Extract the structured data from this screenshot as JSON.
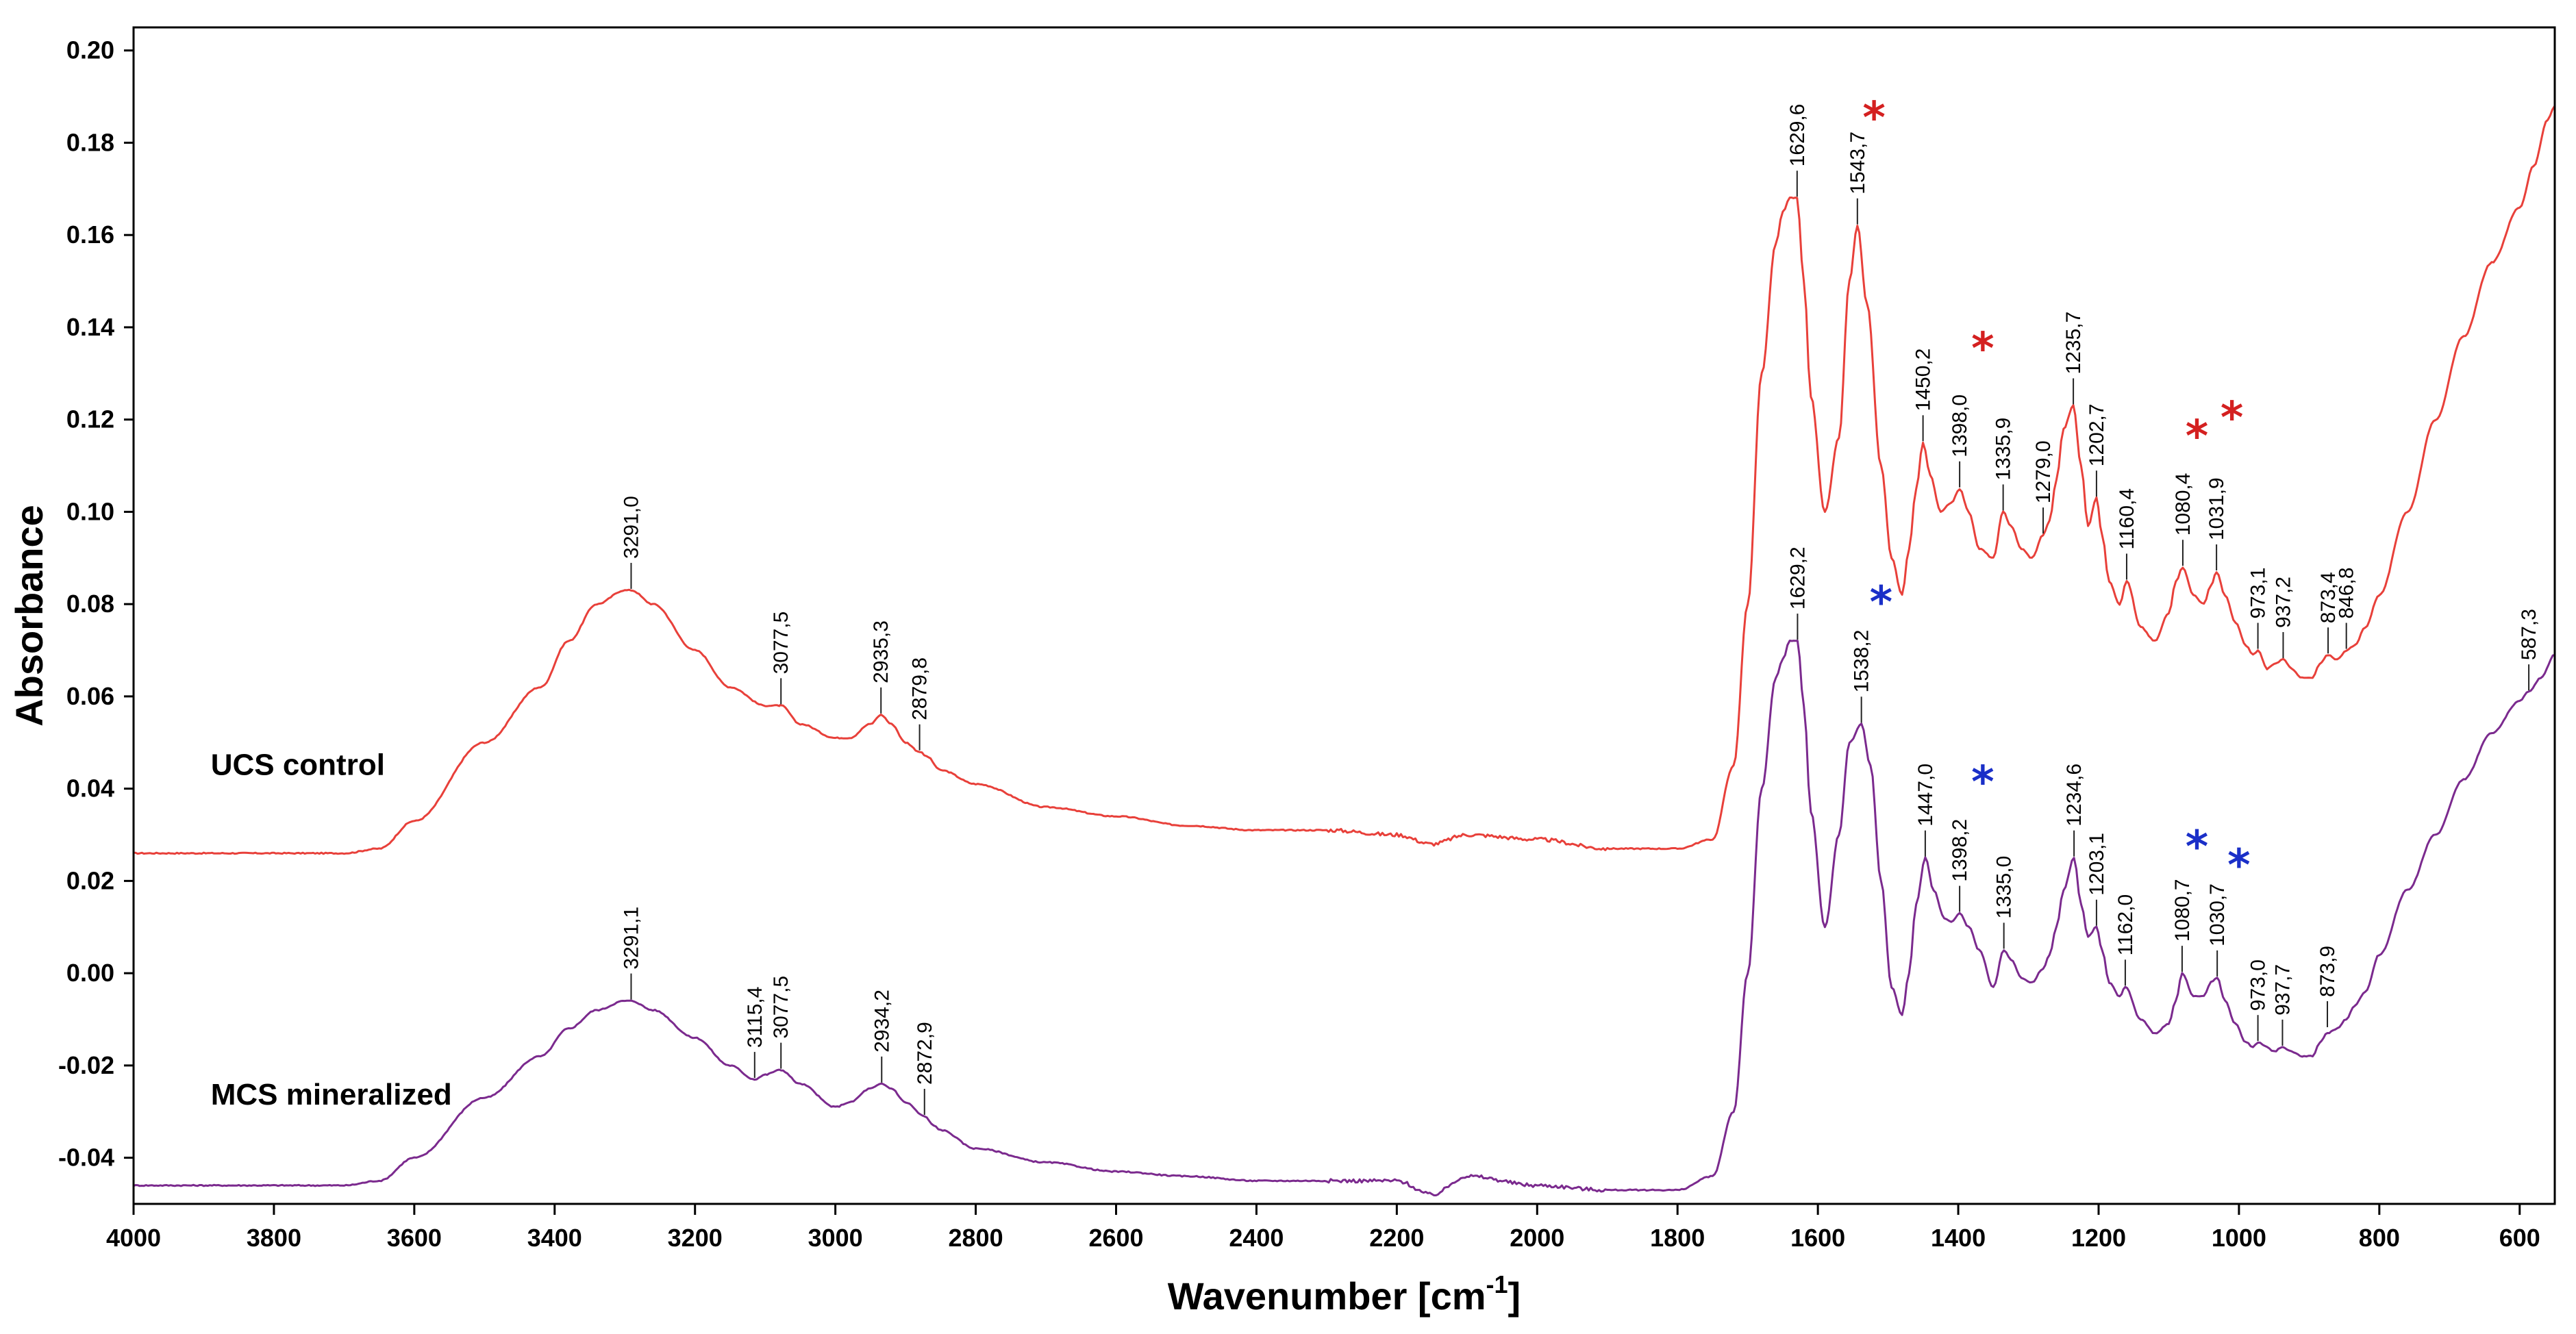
{
  "chart_data": {
    "type": "line",
    "title": "",
    "xlabel": "Wavenumber [cm",
    "xlabel_sup": "-1",
    "xlabel_end": "]",
    "ylabel": "Absorbance",
    "xlim": [
      4000,
      550
    ],
    "ylim": [
      -0.05,
      0.205
    ],
    "x_reversed": true,
    "x_ticks": [
      "4000",
      "3800",
      "3600",
      "3400",
      "3200",
      "3000",
      "2800",
      "2600",
      "2400",
      "2200",
      "2000",
      "1800",
      "1600",
      "1400",
      "1200",
      "1000",
      "800",
      "600"
    ],
    "y_ticks": [
      "0.20",
      "0.18",
      "0.16",
      "0.14",
      "0.12",
      "0.10",
      "0.08",
      "0.06",
      "0.04",
      "0.02",
      "0.00",
      "-0.02",
      "-0.04"
    ],
    "colors": {
      "ucs": "#e8403a",
      "mcs": "#7b2a8e",
      "red_star": "#d42020",
      "blue_star": "#1a2fc8",
      "axis": "#000000"
    },
    "series": [
      {
        "name": "UCS control",
        "color": "#e8403a",
        "x": [
          4000,
          3800,
          3700,
          3650,
          3600,
          3500,
          3420,
          3380,
          3340,
          3300,
          3291,
          3260,
          3200,
          3150,
          3100,
          3080,
          3077.5,
          3050,
          3000,
          2980,
          2950,
          2935,
          2920,
          2900,
          2880,
          2870,
          2850,
          2800,
          2700,
          2600,
          2500,
          2400,
          2300,
          2200,
          2150,
          2100,
          2000,
          1900,
          1800,
          1750,
          1720,
          1700,
          1680,
          1660,
          1650,
          1640,
          1629.6,
          1620,
          1610,
          1590,
          1570,
          1555,
          1543.7,
          1530,
          1510,
          1495,
          1480,
          1470,
          1460,
          1450.2,
          1440,
          1425,
          1410,
          1398,
          1385,
          1370,
          1350,
          1336,
          1325,
          1310,
          1295,
          1279,
          1270,
          1260,
          1250,
          1236,
          1225,
          1215,
          1203,
          1195,
          1185,
          1170,
          1160,
          1140,
          1120,
          1100,
          1090,
          1080,
          1065,
          1050,
          1040,
          1032,
          1020,
          1005,
          990,
          980,
          973,
          960,
          950,
          937,
          925,
          910,
          895,
          885,
          873,
          860,
          847,
          835,
          820,
          800,
          760,
          720,
          680,
          640,
          600,
          580,
          560,
          550
        ],
        "y": [
          0.026,
          0.026,
          0.026,
          0.027,
          0.033,
          0.05,
          0.062,
          0.072,
          0.08,
          0.083,
          0.083,
          0.08,
          0.07,
          0.062,
          0.058,
          0.058,
          0.058,
          0.054,
          0.051,
          0.051,
          0.054,
          0.056,
          0.054,
          0.05,
          0.048,
          0.047,
          0.044,
          0.041,
          0.036,
          0.034,
          0.032,
          0.031,
          0.031,
          0.03,
          0.028,
          0.03,
          0.029,
          0.027,
          0.027,
          0.029,
          0.045,
          0.08,
          0.13,
          0.158,
          0.165,
          0.168,
          0.168,
          0.15,
          0.125,
          0.1,
          0.116,
          0.15,
          0.162,
          0.145,
          0.11,
          0.09,
          0.082,
          0.092,
          0.105,
          0.115,
          0.108,
          0.1,
          0.102,
          0.105,
          0.1,
          0.092,
          0.09,
          0.1,
          0.097,
          0.092,
          0.09,
          0.095,
          0.098,
          0.107,
          0.118,
          0.123,
          0.11,
          0.097,
          0.103,
          0.095,
          0.085,
          0.08,
          0.085,
          0.075,
          0.072,
          0.078,
          0.085,
          0.088,
          0.082,
          0.08,
          0.084,
          0.087,
          0.082,
          0.076,
          0.071,
          0.069,
          0.07,
          0.066,
          0.067,
          0.068,
          0.066,
          0.064,
          0.064,
          0.067,
          0.069,
          0.068,
          0.07,
          0.071,
          0.075,
          0.082,
          0.1,
          0.12,
          0.138,
          0.154,
          0.166,
          0.175,
          0.185,
          0.188
        ]
      },
      {
        "name": "MCS mineralized",
        "color": "#7b2a8e",
        "x": [
          4000,
          3800,
          3700,
          3650,
          3600,
          3500,
          3420,
          3380,
          3340,
          3300,
          3291,
          3260,
          3200,
          3150,
          3115,
          3100,
          3080,
          3077.5,
          3050,
          3000,
          2980,
          2950,
          2934,
          2920,
          2900,
          2873,
          2860,
          2850,
          2800,
          2700,
          2600,
          2500,
          2400,
          2300,
          2200,
          2150,
          2100,
          2000,
          1900,
          1800,
          1750,
          1720,
          1700,
          1680,
          1660,
          1650,
          1640,
          1629,
          1620,
          1610,
          1590,
          1570,
          1555,
          1538,
          1525,
          1510,
          1495,
          1480,
          1470,
          1460,
          1447,
          1435,
          1420,
          1410,
          1398,
          1385,
          1370,
          1350,
          1335,
          1325,
          1310,
          1295,
          1279,
          1270,
          1260,
          1250,
          1235,
          1225,
          1215,
          1203,
          1195,
          1185,
          1170,
          1162,
          1140,
          1120,
          1100,
          1090,
          1081,
          1065,
          1050,
          1040,
          1031,
          1020,
          1005,
          990,
          980,
          973,
          960,
          950,
          938,
          925,
          910,
          895,
          885,
          874,
          860,
          847,
          835,
          820,
          800,
          760,
          720,
          680,
          640,
          600,
          587,
          570,
          550
        ],
        "y": [
          -0.046,
          -0.046,
          -0.046,
          -0.045,
          -0.04,
          -0.027,
          -0.018,
          -0.012,
          -0.008,
          -0.006,
          -0.006,
          -0.008,
          -0.014,
          -0.02,
          -0.023,
          -0.022,
          -0.021,
          -0.021,
          -0.024,
          -0.029,
          -0.028,
          -0.025,
          -0.024,
          -0.025,
          -0.028,
          -0.031,
          -0.033,
          -0.034,
          -0.038,
          -0.041,
          -0.043,
          -0.044,
          -0.045,
          -0.045,
          -0.045,
          -0.048,
          -0.044,
          -0.046,
          -0.047,
          -0.047,
          -0.044,
          -0.03,
          0.0,
          0.04,
          0.064,
          0.068,
          0.072,
          0.072,
          0.058,
          0.035,
          0.01,
          0.03,
          0.05,
          0.054,
          0.045,
          0.02,
          -0.003,
          -0.009,
          0.0,
          0.015,
          0.025,
          0.018,
          0.012,
          0.011,
          0.013,
          0.01,
          0.005,
          -0.003,
          0.005,
          0.003,
          -0.001,
          -0.002,
          0.001,
          0.004,
          0.01,
          0.018,
          0.025,
          0.015,
          0.008,
          0.01,
          0.005,
          -0.002,
          -0.005,
          -0.003,
          -0.01,
          -0.013,
          -0.011,
          -0.006,
          0.0,
          -0.005,
          -0.005,
          -0.002,
          -0.001,
          -0.006,
          -0.011,
          -0.015,
          -0.016,
          -0.015,
          -0.016,
          -0.017,
          -0.016,
          -0.017,
          -0.018,
          -0.018,
          -0.015,
          -0.013,
          -0.012,
          -0.01,
          -0.007,
          -0.004,
          0.004,
          0.018,
          0.03,
          0.042,
          0.052,
          0.059,
          0.061,
          0.064,
          0.069
        ]
      }
    ],
    "series_labels": [
      {
        "text": "UCS control",
        "wn": 3890,
        "y": 0.043
      },
      {
        "text": "MCS mineralized",
        "wn": 3890,
        "y": -0.0285
      }
    ],
    "peak_labels": [
      {
        "series": 0,
        "text": "3291,0",
        "wn": 3291,
        "y": 0.083
      },
      {
        "series": 0,
        "text": "3077,5",
        "wn": 3077.5,
        "y": 0.058
      },
      {
        "series": 0,
        "text": "2935,3",
        "wn": 2935,
        "y": 0.056
      },
      {
        "series": 0,
        "text": "2879,8",
        "wn": 2880,
        "y": 0.048
      },
      {
        "series": 0,
        "text": "1629,6",
        "wn": 1629.6,
        "y": 0.168
      },
      {
        "series": 0,
        "text": "1543,7",
        "wn": 1543.7,
        "y": 0.162
      },
      {
        "series": 0,
        "text": "1450,2",
        "wn": 1450.2,
        "y": 0.115
      },
      {
        "series": 0,
        "text": "1398,0",
        "wn": 1398,
        "y": 0.105
      },
      {
        "series": 0,
        "text": "1335,9",
        "wn": 1336,
        "y": 0.1
      },
      {
        "series": 0,
        "text": "1279,0",
        "wn": 1279,
        "y": 0.095
      },
      {
        "series": 0,
        "text": "1235,7",
        "wn": 1236,
        "y": 0.123
      },
      {
        "series": 0,
        "text": "1202,7",
        "wn": 1203,
        "y": 0.103
      },
      {
        "series": 0,
        "text": "1160,4",
        "wn": 1160,
        "y": 0.085
      },
      {
        "series": 0,
        "text": "1080,4",
        "wn": 1080,
        "y": 0.088
      },
      {
        "series": 0,
        "text": "1031,9",
        "wn": 1032,
        "y": 0.087
      },
      {
        "series": 0,
        "text": "973,1",
        "wn": 973,
        "y": 0.07
      },
      {
        "series": 0,
        "text": "937,2",
        "wn": 937,
        "y": 0.068
      },
      {
        "series": 0,
        "text": "873,4",
        "wn": 873,
        "y": 0.069
      },
      {
        "series": 0,
        "text": "846,8",
        "wn": 847,
        "y": 0.07
      },
      {
        "series": 1,
        "text": "3291,1",
        "wn": 3291,
        "y": -0.006
      },
      {
        "series": 1,
        "text": "3115,4",
        "wn": 3115,
        "y": -0.023
      },
      {
        "series": 1,
        "text": "3077,5",
        "wn": 3077.5,
        "y": -0.021
      },
      {
        "series": 1,
        "text": "2934,2",
        "wn": 2934,
        "y": -0.024
      },
      {
        "series": 1,
        "text": "2872,9",
        "wn": 2873,
        "y": -0.031
      },
      {
        "series": 1,
        "text": "1629,2",
        "wn": 1629,
        "y": 0.072
      },
      {
        "series": 1,
        "text": "1538,2",
        "wn": 1538,
        "y": 0.054
      },
      {
        "series": 1,
        "text": "1447,0",
        "wn": 1447,
        "y": 0.025
      },
      {
        "series": 1,
        "text": "1398,2",
        "wn": 1398,
        "y": 0.013
      },
      {
        "series": 1,
        "text": "1335,0",
        "wn": 1335,
        "y": 0.005
      },
      {
        "series": 1,
        "text": "1234,6",
        "wn": 1235,
        "y": 0.025
      },
      {
        "series": 1,
        "text": "1203,1",
        "wn": 1203,
        "y": 0.01
      },
      {
        "series": 1,
        "text": "1162,0",
        "wn": 1162,
        "y": -0.003
      },
      {
        "series": 1,
        "text": "1080,7",
        "wn": 1081,
        "y": 0.0
      },
      {
        "series": 1,
        "text": "1030,7",
        "wn": 1031,
        "y": -0.001
      },
      {
        "series": 1,
        "text": "973,0",
        "wn": 973,
        "y": -0.015
      },
      {
        "series": 1,
        "text": "937,7",
        "wn": 938,
        "y": -0.016
      },
      {
        "series": 1,
        "text": "873,9",
        "wn": 874,
        "y": -0.012
      },
      {
        "series": 1,
        "text": "587,3",
        "wn": 587,
        "y": 0.061
      }
    ],
    "markers": [
      {
        "color": "red",
        "symbol": "*",
        "wn": 1520,
        "y": 0.186
      },
      {
        "color": "red",
        "symbol": "*",
        "wn": 1365,
        "y": 0.136
      },
      {
        "color": "red",
        "symbol": "*",
        "wn": 1060,
        "y": 0.117
      },
      {
        "color": "red",
        "symbol": "*",
        "wn": 1010,
        "y": 0.121
      },
      {
        "color": "blue",
        "symbol": "*",
        "wn": 1510,
        "y": 0.081
      },
      {
        "color": "blue",
        "symbol": "*",
        "wn": 1365,
        "y": 0.042
      },
      {
        "color": "blue",
        "symbol": "*",
        "wn": 1060,
        "y": 0.028
      },
      {
        "color": "blue",
        "symbol": "*",
        "wn": 1000,
        "y": 0.024
      }
    ]
  }
}
